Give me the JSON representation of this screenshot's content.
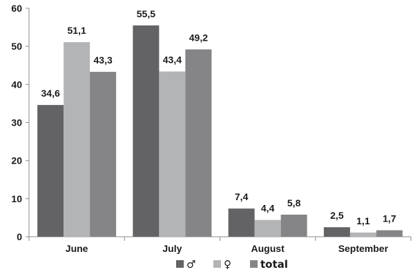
{
  "chart_data": {
    "type": "bar",
    "categories": [
      "June",
      "July",
      "August",
      "September"
    ],
    "series": [
      {
        "name": "♂",
        "values": [
          34.6,
          55.5,
          7.4,
          2.5
        ],
        "color": "#636366",
        "labels": [
          "34,6",
          "55,5",
          "7,4",
          "2,5"
        ]
      },
      {
        "name": "♀",
        "values": [
          51.1,
          43.4,
          4.4,
          1.1
        ],
        "color": "#b3b4b6",
        "labels": [
          "51,1",
          "43,4",
          "4,4",
          "1,1"
        ]
      },
      {
        "name": "total",
        "values": [
          43.3,
          49.2,
          5.8,
          1.7
        ],
        "color": "#858588",
        "labels": [
          "43,3",
          "49,2",
          "5,8",
          "1,7"
        ]
      }
    ],
    "yticks": [
      0,
      10,
      20,
      30,
      40,
      50,
      60
    ],
    "ylim": [
      0,
      60
    ],
    "grid": false,
    "legend": "bottom-center",
    "title": "",
    "xlabel": "",
    "ylabel": ""
  }
}
